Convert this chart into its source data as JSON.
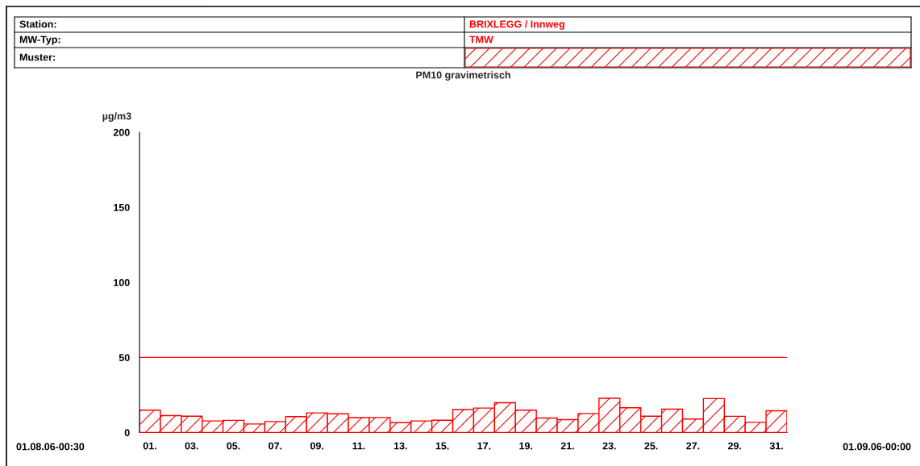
{
  "chart_data": {
    "type": "bar",
    "title": "PM10 gravimetrisch",
    "ylabel": "µg/m3",
    "categories": [
      "01.",
      null,
      "03.",
      null,
      "05.",
      null,
      "07.",
      null,
      "09.",
      null,
      "11.",
      null,
      "13.",
      null,
      "15.",
      null,
      "17.",
      null,
      "19.",
      null,
      "21.",
      null,
      "23.",
      null,
      "25.",
      null,
      "27.",
      null,
      "29.",
      null,
      "31."
    ],
    "values": [
      14.9,
      11.3,
      10.9,
      7.7,
      8.1,
      5.7,
      7.3,
      10.6,
      13.1,
      12.5,
      9.9,
      10.0,
      6.6,
      7.7,
      8.2,
      15.3,
      16.3,
      19.9,
      14.9,
      9.7,
      8.6,
      12.7,
      22.8,
      16.5,
      10.9,
      15.6,
      9.0,
      22.6,
      10.8,
      6.8,
      14.5
    ],
    "color": "#ff0000",
    "ylim": [
      0,
      200
    ],
    "yticks": [
      0,
      50,
      100,
      150,
      200
    ],
    "ref_lines": [
      {
        "axis": "y",
        "value": 50,
        "color": "#ff0000"
      }
    ],
    "annotations": [
      "Station:",
      "BRIXLEGG / Innweg",
      "MW-Typ:",
      "TMW",
      "Muster:",
      "01.08.06-00:30",
      "01.09.06-00:00"
    ],
    "grid": false,
    "legend": false
  }
}
